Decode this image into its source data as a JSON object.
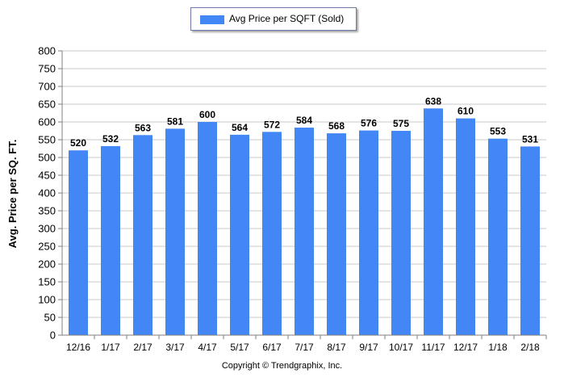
{
  "chart_data": {
    "type": "bar",
    "title": "",
    "xlabel": "",
    "ylabel": "Avg. Price per SQ. FT.",
    "categories": [
      "12/16",
      "1/17",
      "2/17",
      "3/17",
      "4/17",
      "5/17",
      "6/17",
      "7/17",
      "8/17",
      "9/17",
      "10/17",
      "11/17",
      "12/17",
      "1/18",
      "2/18"
    ],
    "series": [
      {
        "name": "Avg Price per SQFT (Sold)",
        "values": [
          520,
          532,
          563,
          581,
          600,
          564,
          572,
          584,
          568,
          576,
          575,
          638,
          610,
          553,
          531
        ]
      }
    ],
    "ylim": [
      0,
      800
    ],
    "yticks": [
      0,
      50,
      100,
      150,
      200,
      250,
      300,
      350,
      400,
      450,
      500,
      550,
      600,
      650,
      700,
      750,
      800
    ],
    "grid": true,
    "legend_position": "top-center",
    "data_labels": true
  },
  "colors": {
    "bar": "#4287f5",
    "grid": "#c8c8c8",
    "axis": "#808080"
  },
  "footer": "Copyright © Trendgraphix, Inc."
}
